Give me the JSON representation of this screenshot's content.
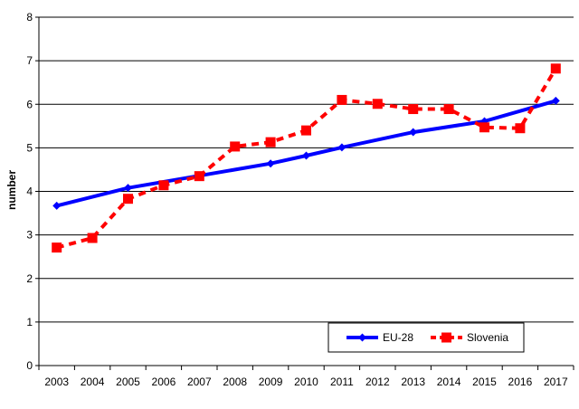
{
  "chart_data": {
    "type": "line",
    "title": "",
    "xlabel": "",
    "ylabel": "number",
    "ylim": [
      0,
      8
    ],
    "yticks": [
      "0",
      "1",
      "2",
      "3",
      "4",
      "5",
      "6",
      "7",
      "8"
    ],
    "categories": [
      "2003",
      "2004",
      "2005",
      "2006",
      "2007",
      "2008",
      "2009",
      "2010",
      "2011",
      "2012",
      "2013",
      "2014",
      "2015",
      "2016",
      "2017"
    ],
    "grid": "horizontal",
    "legend_position": "bottom-right",
    "series": [
      {
        "name": "EU-28",
        "color": "#0000ff",
        "style": "solid",
        "marker": "diamond",
        "values": [
          3.67,
          null,
          4.08,
          null,
          null,
          null,
          4.64,
          4.82,
          5.01,
          null,
          5.36,
          null,
          5.61,
          null,
          6.08
        ]
      },
      {
        "name": "Slovenia",
        "color": "#ff0000",
        "style": "dashed",
        "marker": "square",
        "values": [
          2.71,
          2.93,
          3.83,
          4.14,
          4.35,
          5.03,
          5.13,
          5.4,
          6.1,
          6.01,
          5.89,
          5.89,
          5.47,
          5.45,
          6.82
        ]
      }
    ]
  }
}
